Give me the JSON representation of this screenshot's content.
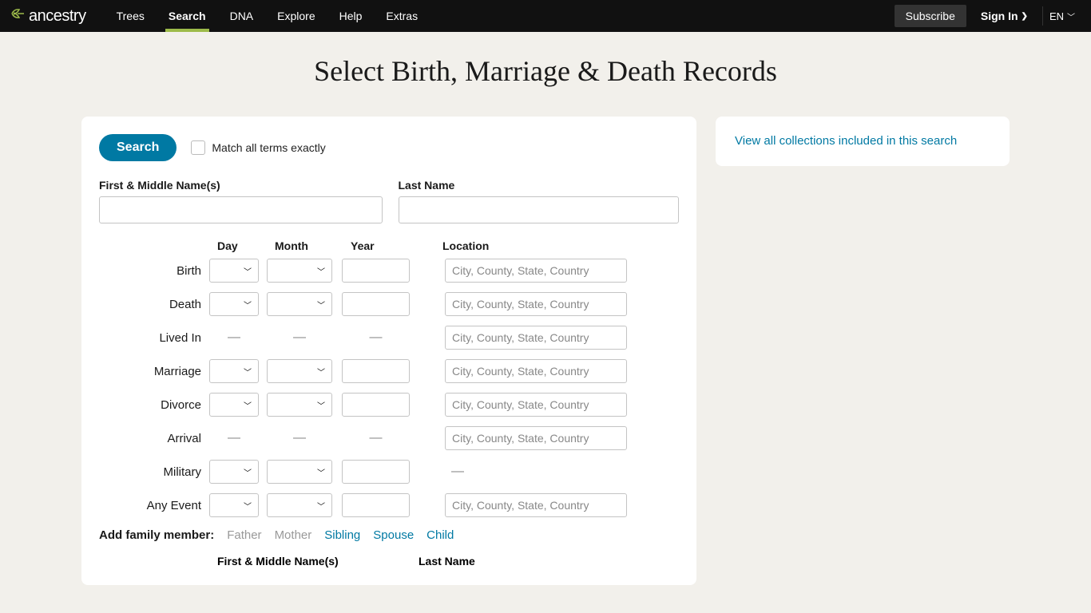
{
  "nav": {
    "brand": "ancestry",
    "items": [
      "Trees",
      "Search",
      "DNA",
      "Explore",
      "Help",
      "Extras"
    ],
    "active_index": 1,
    "subscribe": "Subscribe",
    "signin": "Sign In",
    "lang": "EN"
  },
  "page": {
    "title": "Select Birth, Marriage & Death Records"
  },
  "form": {
    "search_label": "Search",
    "match_exact": "Match all terms exactly",
    "first_name_label": "First & Middle Name(s)",
    "last_name_label": "Last Name",
    "columns": {
      "day": "Day",
      "month": "Month",
      "year": "Year",
      "location": "Location"
    },
    "location_placeholder": "City, County, State, Country",
    "events": [
      {
        "label": "Birth",
        "day": true,
        "month": true,
        "year": true,
        "loc": true
      },
      {
        "label": "Death",
        "day": true,
        "month": true,
        "year": true,
        "loc": true
      },
      {
        "label": "Lived In",
        "day": false,
        "month": false,
        "year": false,
        "loc": true
      },
      {
        "label": "Marriage",
        "day": true,
        "month": true,
        "year": true,
        "loc": true
      },
      {
        "label": "Divorce",
        "day": true,
        "month": true,
        "year": true,
        "loc": true
      },
      {
        "label": "Arrival",
        "day": false,
        "month": false,
        "year": false,
        "loc": true
      },
      {
        "label": "Military",
        "day": true,
        "month": true,
        "year": true,
        "loc": false
      },
      {
        "label": "Any Event",
        "day": true,
        "month": true,
        "year": true,
        "loc": true
      }
    ],
    "family": {
      "label": "Add family member:",
      "disabled": [
        "Father",
        "Mother"
      ],
      "links": [
        "Sibling",
        "Spouse",
        "Child"
      ],
      "sub_first": "First & Middle Name(s)",
      "sub_last": "Last Name"
    }
  },
  "sidebar": {
    "link": "View all collections included in this search"
  },
  "colors": {
    "accent": "#0079a3",
    "brand_green": "#9dbb4a",
    "bg": "#f2f0eb"
  }
}
